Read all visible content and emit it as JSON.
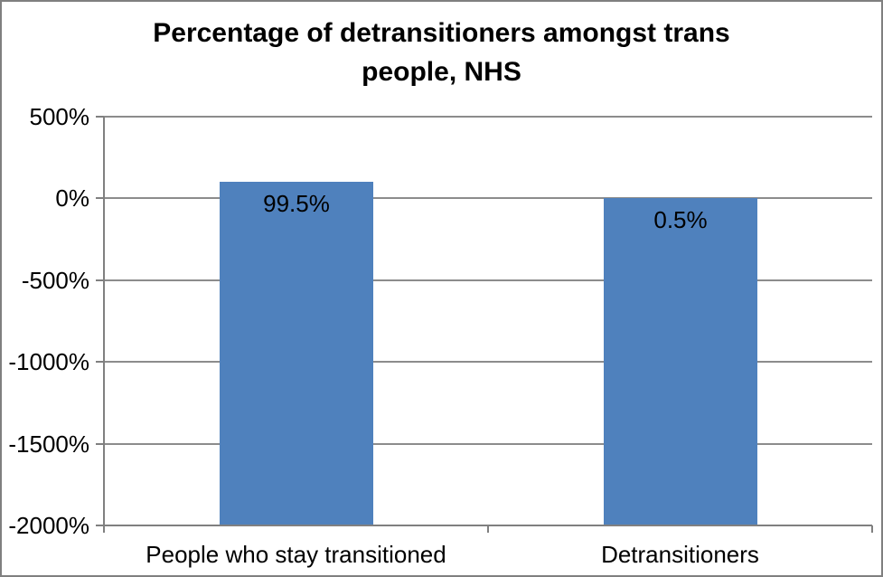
{
  "chart_data": {
    "type": "bar",
    "title": "Percentage of detransitioners amongst trans people, NHS",
    "title_lines": [
      "Percentage of detransitioners amongst trans",
      "people, NHS"
    ],
    "categories": [
      "People who stay transitioned",
      "Detransitioners"
    ],
    "values": [
      99.5,
      0.5
    ],
    "data_labels": [
      "99.5%",
      "0.5%"
    ],
    "y_ticks": [
      500,
      0,
      -500,
      -1000,
      -1500,
      -2000
    ],
    "y_tick_labels": [
      "500%",
      "0%",
      "-500%",
      "-1000%",
      "-1500%",
      "-2000%"
    ],
    "ylim": [
      -2000,
      500
    ],
    "bar_base": -2000,
    "grid": true,
    "legend": false,
    "xlabel": "",
    "ylabel": "",
    "colors": {
      "bar": "#4F81BD",
      "grid": "#8c8c8c",
      "axis": "#808080",
      "text": "#000000",
      "background": "#FFFFFF",
      "border": "#808080"
    }
  }
}
